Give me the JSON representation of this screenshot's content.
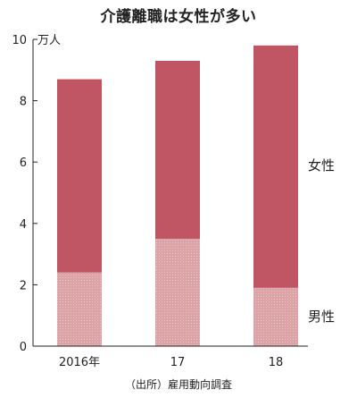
{
  "chart_data": {
    "type": "bar",
    "stacked": true,
    "title": "介護離職は女性が多い",
    "unit": "万人",
    "categories": [
      "2016年",
      "17",
      "18"
    ],
    "series": [
      {
        "name": "男性",
        "values": [
          2.4,
          3.5,
          1.9
        ],
        "color": "#dba3a5"
      },
      {
        "name": "女性",
        "values": [
          6.3,
          5.8,
          7.9
        ],
        "color": "#c05563"
      }
    ],
    "ylim": [
      0,
      10
    ],
    "yticks": [
      0,
      2,
      4,
      6,
      8,
      10
    ],
    "legend": "right",
    "source": "（出所）雇用動向調査"
  }
}
